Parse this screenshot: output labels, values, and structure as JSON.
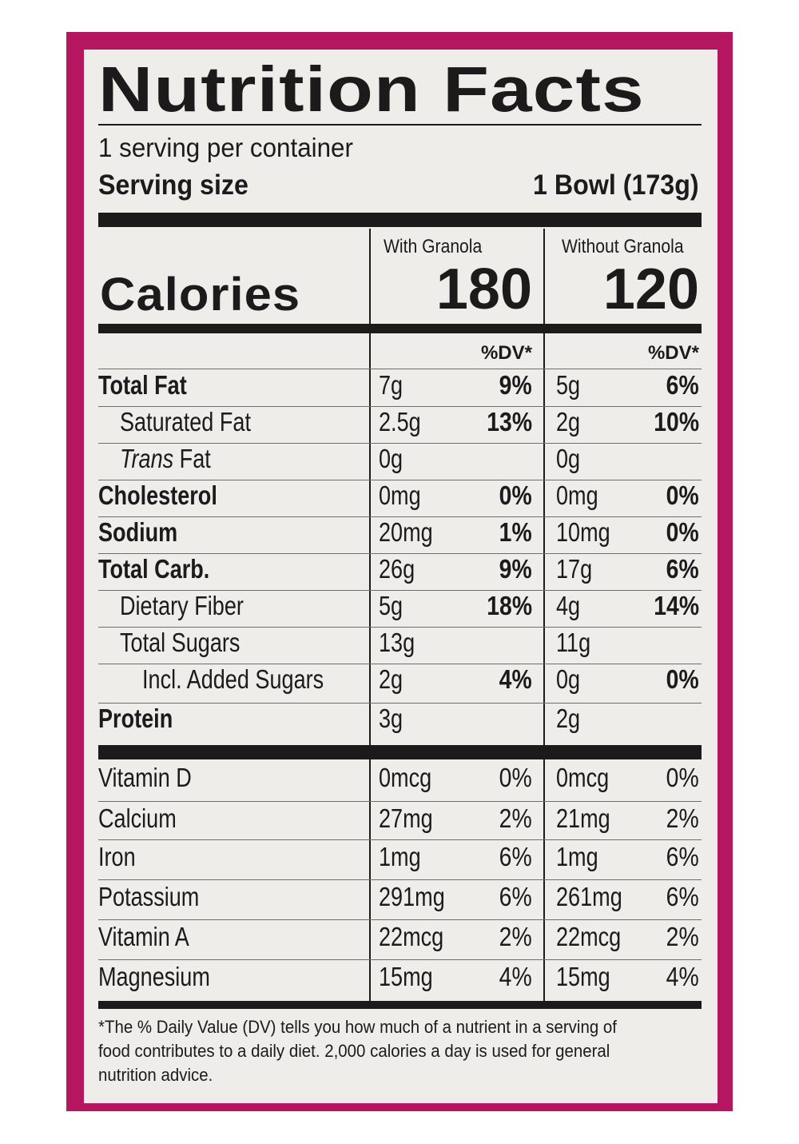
{
  "title": "Nutrition Facts",
  "servings_per_container": "1 serving per container",
  "serving_size_label": "Serving size",
  "serving_size_value": "1 Bowl (173g)",
  "columns": {
    "with": "With Granola",
    "without": "Without Granola"
  },
  "calories_label": "Calories",
  "calories": {
    "with": "180",
    "without": "120"
  },
  "dv_header": "%DV*",
  "nutrients": [
    {
      "label": "Total Fat",
      "bold": true,
      "indent": 0,
      "with_amount": "7g",
      "with_dv": "9%",
      "without_amount": "5g",
      "without_dv": "6%"
    },
    {
      "label": "Saturated Fat",
      "bold": false,
      "indent": 1,
      "with_amount": "2.5g",
      "with_dv": "13%",
      "without_amount": "2g",
      "without_dv": "10%"
    },
    {
      "label": "Trans Fat",
      "label_italic_prefix": "Trans",
      "label_rest": " Fat",
      "bold": false,
      "indent": 1,
      "with_amount": "0g",
      "with_dv": "",
      "without_amount": "0g",
      "without_dv": ""
    },
    {
      "label": "Cholesterol",
      "bold": true,
      "indent": 0,
      "with_amount": "0mg",
      "with_dv": "0%",
      "without_amount": "0mg",
      "without_dv": "0%"
    },
    {
      "label": "Sodium",
      "bold": true,
      "indent": 0,
      "with_amount": "20mg",
      "with_dv": "1%",
      "without_amount": "10mg",
      "without_dv": "0%"
    },
    {
      "label": "Total Carb.",
      "bold": true,
      "indent": 0,
      "with_amount": "26g",
      "with_dv": "9%",
      "without_amount": "17g",
      "without_dv": "6%"
    },
    {
      "label": "Dietary Fiber",
      "bold": false,
      "indent": 1,
      "with_amount": "5g",
      "with_dv": "18%",
      "without_amount": "4g",
      "without_dv": "14%"
    },
    {
      "label": "Total Sugars",
      "bold": false,
      "indent": 1,
      "with_amount": "13g",
      "with_dv": "",
      "without_amount": "11g",
      "without_dv": ""
    },
    {
      "label": "Incl. Added Sugars",
      "bold": false,
      "indent": 2,
      "with_amount": "2g",
      "with_dv": "4%",
      "without_amount": "0g",
      "without_dv": "0%"
    },
    {
      "label": "Protein",
      "bold": true,
      "indent": 0,
      "with_amount": "3g",
      "with_dv": "",
      "without_amount": "2g",
      "without_dv": ""
    }
  ],
  "vitamins": [
    {
      "label": "Vitamin D",
      "with_amount": "0mcg",
      "with_dv": "0%",
      "without_amount": "0mcg",
      "without_dv": "0%"
    },
    {
      "label": "Calcium",
      "with_amount": "27mg",
      "with_dv": "2%",
      "without_amount": "21mg",
      "without_dv": "2%"
    },
    {
      "label": "Iron",
      "with_amount": "1mg",
      "with_dv": "6%",
      "without_amount": "1mg",
      "without_dv": "6%"
    },
    {
      "label": "Potassium",
      "with_amount": "291mg",
      "with_dv": "6%",
      "without_amount": "261mg",
      "without_dv": "6%"
    },
    {
      "label": "Vitamin A",
      "with_amount": "22mcg",
      "with_dv": "2%",
      "without_amount": "22mcg",
      "without_dv": "2%"
    },
    {
      "label": "Magnesium",
      "with_amount": "15mg",
      "with_dv": "4%",
      "without_amount": "15mg",
      "without_dv": "4%"
    }
  ],
  "footnote_lines": [
    "*The % Daily Value (DV) tells you how much of a nutrient in a serving of",
    "food contributes to a daily diet. 2,000 calories a day is used for general",
    "nutrition advice."
  ],
  "colors": {
    "border": "#b51660",
    "panel": "#eeede9",
    "ink": "#1c1a1b"
  }
}
